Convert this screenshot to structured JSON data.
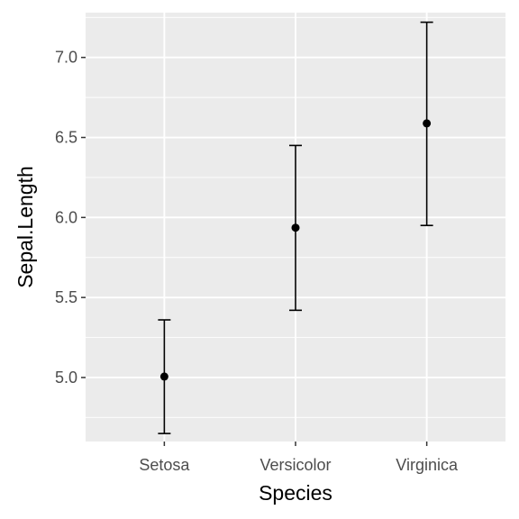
{
  "chart_data": {
    "type": "scatter",
    "subtype": "point-errorbar",
    "title": "",
    "xlabel": "Species",
    "ylabel": "Sepal.Length",
    "categories": [
      "Setosa",
      "Versicolor",
      "Virginica"
    ],
    "series": [
      {
        "values": [
          5.006,
          5.936,
          6.588
        ],
        "lower": [
          4.65,
          5.42,
          5.95
        ],
        "upper": [
          5.36,
          6.45,
          7.22
        ]
      }
    ],
    "ylim": [
      4.6,
      7.28
    ],
    "yticks": [
      5.0,
      5.5,
      6.0,
      6.5,
      7.0
    ],
    "ytick_labels": [
      "5.0",
      "5.5",
      "6.0",
      "6.5",
      "7.0"
    ],
    "grid": true,
    "legend": "none",
    "colors": {
      "panel": "#ebebeb",
      "grid": "#ffffff",
      "marks": "#000000",
      "tick_text": "#4d4d4d"
    }
  }
}
